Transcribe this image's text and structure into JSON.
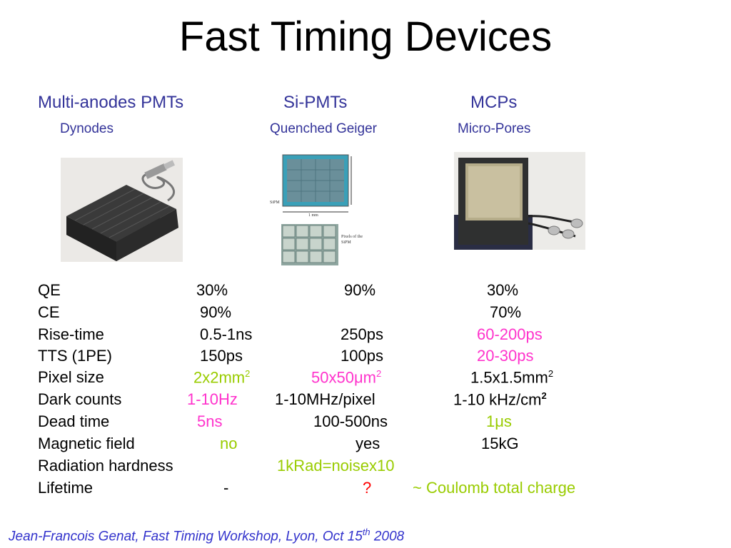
{
  "title": "Fast Timing Devices",
  "columns": [
    {
      "name": "Multi-anodes PMTs",
      "sub": "Dynodes"
    },
    {
      "name": "Si-PMTs",
      "sub": "Quenched Geiger"
    },
    {
      "name": "MCPs",
      "sub": "Micro-Pores"
    }
  ],
  "images": {
    "sipm_label": "SiPM",
    "sipm_scale": "1 mm",
    "sipm_pixels_label": "Pixels of the SiPM"
  },
  "rows": [
    {
      "label": "QE",
      "pmt": "30%",
      "sipm": "90%",
      "mcp": "30%"
    },
    {
      "label": "CE",
      "pmt": "90%",
      "sipm": "",
      "mcp": "70%"
    },
    {
      "label": "Rise-time",
      "pmt": "0.5-1ns",
      "sipm": "250ps",
      "mcp": "60-200ps"
    },
    {
      "label": "TTS (1PE)",
      "pmt": "150ps",
      "sipm": "100ps",
      "mcp": "20-30ps"
    },
    {
      "label": "Pixel size",
      "pmt": "2x2mm",
      "pmt_sup": "2",
      "sipm": "50x50μm",
      "sipm_sup": "2",
      "mcp": "1.5x1.5mm",
      "mcp_sup": "2"
    },
    {
      "label": "Dark counts",
      "pmt": "1-10Hz",
      "sipm": "1-10MHz/pixel",
      "mcp": "1-10 kHz/cm",
      "mcp_sup": "2"
    },
    {
      "label": "Dead time",
      "pmt": "5ns",
      "sipm": "100-500ns",
      "mcp": "1μs"
    },
    {
      "label": "Magnetic field",
      "pmt": "no",
      "sipm": "yes",
      "mcp": "15kG"
    },
    {
      "label": "Radiation hardness",
      "shared": "1kRad=noisex10"
    },
    {
      "label": "Lifetime",
      "pmt": "-",
      "sipm": "?",
      "mcp": "~ Coulomb total charge"
    }
  ],
  "colors": {
    "header": "#333399",
    "highlight_pink": "#ff33cc",
    "highlight_green": "#99cc00",
    "alert_red": "#ff0000",
    "footer": "#3333cc"
  },
  "footer": {
    "text": "Jean-Francois Genat, Fast Timing Workshop, Lyon,   Oct 15",
    "sup": "th",
    "year": " 2008"
  }
}
